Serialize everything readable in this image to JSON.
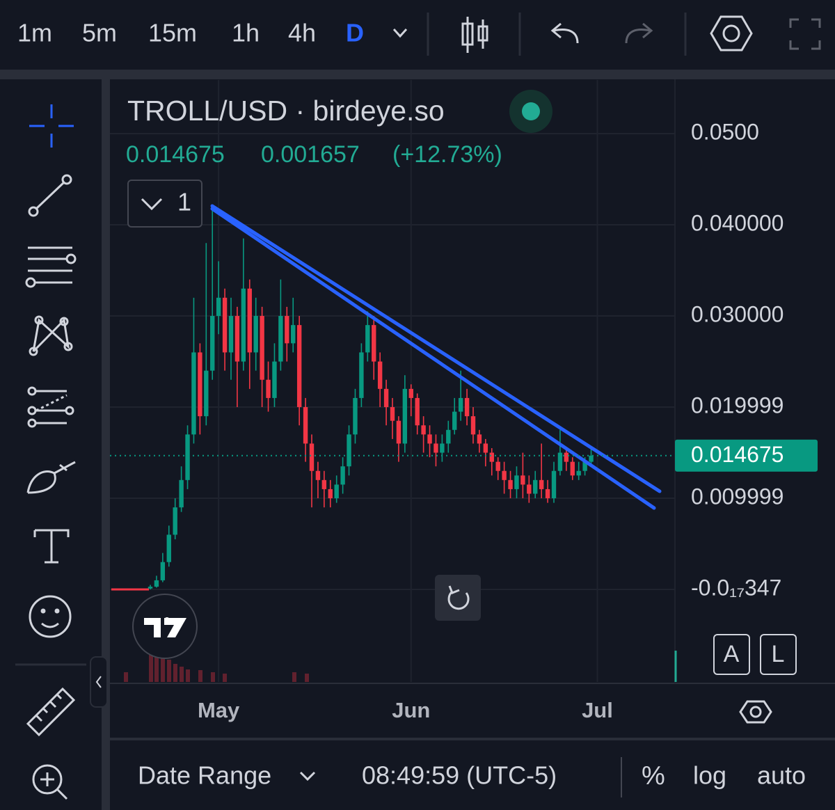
{
  "toolbar": {
    "timeframes": [
      "1m",
      "5m",
      "15m",
      "1h",
      "4h",
      "D"
    ],
    "selected": "D"
  },
  "legend": {
    "title": "TROLL/USD · birdeye.so",
    "price": "0.014675",
    "change": "0.001657",
    "change_pct": "(+12.73%)",
    "indicators_count": "1"
  },
  "chart_data": {
    "type": "candlestick",
    "up_color": "#089981",
    "down_color": "#f23645",
    "open": [
      0.0001,
      0.0003,
      0.001,
      0.003,
      0.006,
      0.009,
      0.012,
      0.017,
      0.026,
      0.019,
      0.024,
      0.03,
      0.032,
      0.026,
      0.03,
      0.025,
      0.033,
      0.026,
      0.03,
      0.023,
      0.021,
      0.025,
      0.03,
      0.027,
      0.029,
      0.02,
      0.016,
      0.013,
      0.012,
      0.011,
      0.01,
      0.0115,
      0.0135,
      0.017,
      0.021,
      0.026,
      0.029,
      0.025,
      0.022,
      0.02,
      0.0185,
      0.016,
      0.022,
      0.021,
      0.018,
      0.017,
      0.016,
      0.015,
      0.016,
      0.0175,
      0.0195,
      0.021,
      0.019,
      0.017,
      0.016,
      0.015,
      0.014,
      0.013,
      0.012,
      0.011,
      0.0125,
      0.0115,
      0.0105,
      0.012,
      0.011,
      0.01,
      0.013,
      0.015,
      0.014,
      0.0125,
      0.013,
      0.014
    ],
    "high": [
      0.0005,
      0.0015,
      0.004,
      0.007,
      0.01,
      0.0135,
      0.018,
      0.032,
      0.027,
      0.038,
      0.042,
      0.036,
      0.033,
      0.032,
      0.031,
      0.0385,
      0.034,
      0.032,
      0.031,
      0.025,
      0.027,
      0.034,
      0.031,
      0.032,
      0.03,
      0.021,
      0.017,
      0.014,
      0.013,
      0.012,
      0.0125,
      0.0145,
      0.018,
      0.022,
      0.027,
      0.0305,
      0.03,
      0.026,
      0.023,
      0.021,
      0.019,
      0.0235,
      0.0225,
      0.0215,
      0.019,
      0.018,
      0.017,
      0.017,
      0.0185,
      0.021,
      0.024,
      0.022,
      0.02,
      0.0175,
      0.0165,
      0.0155,
      0.0145,
      0.014,
      0.013,
      0.0135,
      0.015,
      0.0125,
      0.013,
      0.016,
      0.012,
      0.014,
      0.0175,
      0.0155,
      0.0145,
      0.014,
      0.0145,
      0.0155
    ],
    "low": [
      0.0,
      0.0002,
      0.0008,
      0.0025,
      0.0055,
      0.0085,
      0.011,
      0.016,
      0.017,
      0.018,
      0.023,
      0.028,
      0.024,
      0.023,
      0.02,
      0.024,
      0.022,
      0.024,
      0.02,
      0.0195,
      0.02,
      0.024,
      0.025,
      0.026,
      0.018,
      0.014,
      0.009,
      0.01,
      0.009,
      0.009,
      0.0095,
      0.0105,
      0.0125,
      0.016,
      0.02,
      0.025,
      0.023,
      0.02,
      0.018,
      0.0165,
      0.014,
      0.015,
      0.019,
      0.017,
      0.015,
      0.0145,
      0.0135,
      0.014,
      0.015,
      0.017,
      0.0185,
      0.018,
      0.016,
      0.015,
      0.0135,
      0.0125,
      0.012,
      0.0105,
      0.01,
      0.01,
      0.01,
      0.0095,
      0.01,
      0.01,
      0.0095,
      0.0095,
      0.0125,
      0.013,
      0.012,
      0.012,
      0.0125,
      0.0135
    ],
    "close": [
      0.0003,
      0.001,
      0.003,
      0.006,
      0.009,
      0.012,
      0.017,
      0.026,
      0.019,
      0.024,
      0.03,
      0.032,
      0.026,
      0.03,
      0.025,
      0.033,
      0.026,
      0.03,
      0.023,
      0.021,
      0.025,
      0.03,
      0.027,
      0.029,
      0.02,
      0.016,
      0.013,
      0.012,
      0.011,
      0.01,
      0.0115,
      0.0135,
      0.017,
      0.021,
      0.026,
      0.029,
      0.025,
      0.022,
      0.02,
      0.0185,
      0.016,
      0.022,
      0.021,
      0.018,
      0.017,
      0.016,
      0.015,
      0.016,
      0.0175,
      0.0195,
      0.021,
      0.019,
      0.017,
      0.016,
      0.015,
      0.014,
      0.013,
      0.012,
      0.011,
      0.0125,
      0.0115,
      0.0105,
      0.012,
      0.011,
      0.01,
      0.013,
      0.015,
      0.014,
      0.0125,
      0.013,
      0.014,
      0.014675
    ],
    "xlim": [
      -6.5,
      84.5
    ],
    "xticks": [
      {
        "value": 11,
        "label": "May"
      },
      {
        "value": 42,
        "label": "Jun"
      },
      {
        "value": 72,
        "label": "Jul"
      }
    ],
    "ylim": [
      -0.01015,
      0.05588
    ],
    "yticks": [
      {
        "value": -3.47e-19,
        "label": "-0.0₁₇347"
      },
      0.009999,
      0.019999,
      {
        "value": 0.03,
        "label": "0.030000"
      },
      {
        "value": 0.04,
        "label": "0.040000"
      },
      {
        "value": 0.05,
        "label": "0.0500"
      }
    ],
    "grid": true,
    "last_price": {
      "value": 0.014675,
      "label": "0.014675"
    }
  },
  "scale_buttons": [
    "A",
    "L"
  ],
  "bottom_bar": {
    "date_range": "Date Range",
    "clock": "08:49:59 (UTC-5)",
    "percent": "%",
    "log": "log",
    "auto": "auto"
  }
}
